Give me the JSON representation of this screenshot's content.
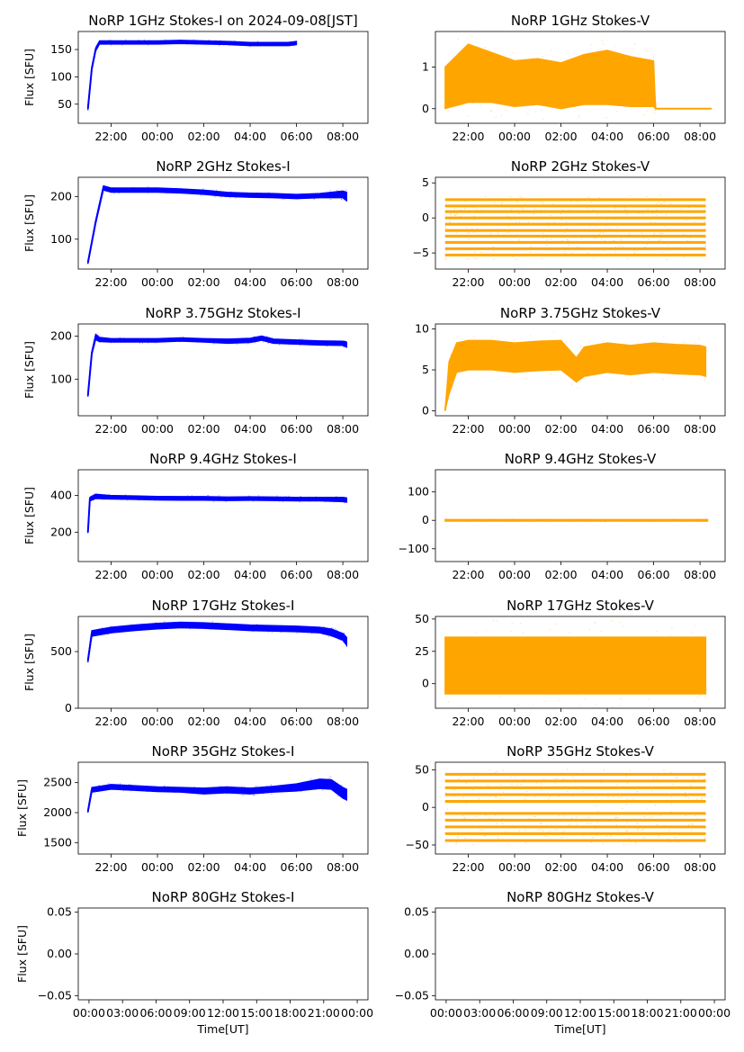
{
  "figure": {
    "title_top_left": "NoRP 1GHz Stokes-I on 2024-09-08[JST]",
    "xlabel": "Time[UT]",
    "ylabel": "Flux [SFU]"
  },
  "colors": {
    "stokes_i": "#0000ff",
    "stokes_v": "#ffa500"
  },
  "chart_data": [
    {
      "type": "scatter",
      "title": "NoRP 1GHz Stokes-I on 2024-09-08[JST]",
      "ylabel": "Flux [SFU]",
      "xlabel": "",
      "series_color": "blue",
      "xlim": [
        "20:35",
        "09:05"
      ],
      "ylim": [
        15,
        183
      ],
      "yticks": [
        50,
        100,
        150
      ],
      "xticks": [
        "22:00",
        "00:00",
        "02:00",
        "04:00",
        "06:00",
        "08:00"
      ],
      "x": [
        "21:00",
        "21:10",
        "21:20",
        "21:30",
        "22:00",
        "23:00",
        "00:00",
        "01:00",
        "02:00",
        "03:00",
        "04:00",
        "05:00",
        "05:40",
        "06:00"
      ],
      "y": [
        42,
        115,
        150,
        163,
        163,
        163,
        163,
        164,
        163,
        162,
        160,
        160,
        160,
        162
      ],
      "spread": [
        3,
        3,
        3,
        3,
        3,
        3,
        3,
        3,
        3,
        3,
        3,
        3,
        3,
        3
      ]
    },
    {
      "type": "scatter",
      "title": "NoRP 1GHz Stokes-V",
      "ylabel": "",
      "xlabel": "",
      "series_color": "orange",
      "xlim": [
        "20:35",
        "09:05"
      ],
      "ylim": [
        -0.35,
        1.85
      ],
      "yticks": [
        0,
        1
      ],
      "xticks": [
        "22:00",
        "00:00",
        "02:00",
        "04:00",
        "06:00",
        "08:00"
      ],
      "x": [
        "21:00",
        "22:00",
        "23:00",
        "00:00",
        "01:00",
        "02:00",
        "03:00",
        "04:00",
        "05:00",
        "06:00",
        "06:05",
        "07:00",
        "08:00",
        "08:30"
      ],
      "y": [
        0.5,
        0.85,
        0.75,
        0.6,
        0.65,
        0.55,
        0.7,
        0.75,
        0.65,
        0.6,
        0,
        0,
        0,
        0
      ],
      "spread": [
        0.5,
        0.7,
        0.6,
        0.55,
        0.55,
        0.55,
        0.6,
        0.65,
        0.6,
        0.55,
        0,
        0,
        0,
        0
      ]
    },
    {
      "type": "scatter",
      "title": "NoRP 2GHz Stokes-I",
      "ylabel": "Flux [SFU]",
      "xlabel": "",
      "series_color": "blue",
      "xlim": [
        "20:35",
        "09:05"
      ],
      "ylim": [
        30,
        245
      ],
      "yticks": [
        100,
        200
      ],
      "xticks": [
        "22:00",
        "00:00",
        "02:00",
        "04:00",
        "06:00",
        "08:00"
      ],
      "x": [
        "21:00",
        "21:20",
        "21:40",
        "22:00",
        "23:00",
        "00:00",
        "01:00",
        "02:00",
        "03:00",
        "04:00",
        "05:00",
        "06:00",
        "07:00",
        "08:00",
        "08:10"
      ],
      "y": [
        45,
        140,
        220,
        215,
        215,
        215,
        213,
        210,
        205,
        203,
        202,
        200,
        202,
        205,
        200
      ],
      "spread": [
        3,
        4,
        5,
        5,
        5,
        5,
        5,
        5,
        5,
        5,
        5,
        5,
        5,
        8,
        10
      ]
    },
    {
      "type": "scatter",
      "title": "NoRP 2GHz Stokes-V",
      "ylabel": "",
      "xlabel": "",
      "series_color": "orange",
      "xlim": [
        "20:35",
        "09:05"
      ],
      "ylim": [
        -7.3,
        5.8
      ],
      "yticks": [
        -5,
        0,
        5
      ],
      "xticks": [
        "22:00",
        "00:00",
        "02:00",
        "04:00",
        "06:00",
        "08:00"
      ],
      "levels": [
        -5.3,
        -4.4,
        -3.5,
        -2.6,
        -1.8,
        -0.9,
        0,
        0.9,
        1.7,
        2.6
      ],
      "x": [
        "21:00",
        "08:15"
      ]
    },
    {
      "type": "scatter",
      "title": "NoRP 3.75GHz Stokes-I",
      "ylabel": "Flux [SFU]",
      "xlabel": "",
      "series_color": "blue",
      "xlim": [
        "20:35",
        "09:05"
      ],
      "ylim": [
        15,
        228
      ],
      "yticks": [
        100,
        200
      ],
      "xticks": [
        "22:00",
        "00:00",
        "02:00",
        "04:00",
        "06:00",
        "08:00"
      ],
      "x": [
        "21:00",
        "21:10",
        "21:20",
        "21:30",
        "22:00",
        "23:00",
        "00:00",
        "01:00",
        "02:00",
        "03:00",
        "04:00",
        "04:30",
        "05:00",
        "06:00",
        "07:00",
        "08:00",
        "08:10"
      ],
      "y": [
        62,
        160,
        198,
        192,
        190,
        190,
        190,
        192,
        190,
        188,
        190,
        195,
        188,
        186,
        184,
        183,
        180
      ],
      "spread": [
        3,
        4,
        6,
        5,
        4,
        4,
        4,
        4,
        4,
        5,
        5,
        5,
        5,
        5,
        5,
        5,
        6
      ]
    },
    {
      "type": "scatter",
      "title": "NoRP 3.75GHz Stokes-V",
      "ylabel": "",
      "xlabel": "",
      "series_color": "orange",
      "xlim": [
        "20:35",
        "09:05"
      ],
      "ylim": [
        -0.6,
        10.6
      ],
      "yticks": [
        0,
        5,
        10
      ],
      "xticks": [
        "22:00",
        "00:00",
        "02:00",
        "04:00",
        "06:00",
        "08:00"
      ],
      "x": [
        "21:00",
        "21:10",
        "21:30",
        "22:00",
        "23:00",
        "00:00",
        "01:00",
        "02:00",
        "02:40",
        "03:00",
        "04:00",
        "05:00",
        "06:00",
        "07:00",
        "08:00",
        "08:15"
      ],
      "y": [
        0,
        4,
        6.5,
        6.8,
        6.8,
        6.5,
        6.7,
        6.8,
        5,
        6,
        6.5,
        6.2,
        6.5,
        6.3,
        6.2,
        6
      ],
      "spread": [
        0,
        2,
        1.8,
        1.8,
        1.8,
        1.8,
        1.8,
        1.8,
        1.5,
        1.8,
        1.8,
        1.8,
        1.8,
        1.8,
        1.8,
        1.8
      ]
    },
    {
      "type": "scatter",
      "title": "NoRP 9.4GHz Stokes-I",
      "ylabel": "Flux [SFU]",
      "xlabel": "",
      "series_color": "blue",
      "xlim": [
        "20:35",
        "09:05"
      ],
      "ylim": [
        40,
        540
      ],
      "yticks": [
        200,
        400
      ],
      "xticks": [
        "22:00",
        "00:00",
        "02:00",
        "04:00",
        "06:00",
        "08:00"
      ],
      "x": [
        "21:00",
        "21:05",
        "21:20",
        "22:00",
        "23:00",
        "00:00",
        "01:00",
        "02:00",
        "03:00",
        "04:00",
        "05:00",
        "06:00",
        "07:00",
        "08:00",
        "08:10"
      ],
      "y": [
        200,
        380,
        395,
        390,
        388,
        385,
        384,
        384,
        382,
        383,
        382,
        380,
        380,
        378,
        375
      ],
      "spread": [
        5,
        10,
        12,
        10,
        10,
        10,
        10,
        10,
        10,
        10,
        10,
        10,
        10,
        12,
        12
      ]
    },
    {
      "type": "scatter",
      "title": "NoRP 9.4GHz Stokes-V",
      "ylabel": "",
      "xlabel": "",
      "series_color": "orange",
      "xlim": [
        "20:35",
        "09:05"
      ],
      "ylim": [
        -145,
        178
      ],
      "yticks": [
        -100,
        0,
        100
      ],
      "xticks": [
        "22:00",
        "00:00",
        "02:00",
        "04:00",
        "06:00",
        "08:00"
      ],
      "x": [
        "21:00",
        "08:20"
      ],
      "y": [
        0,
        0
      ],
      "spread": [
        3,
        3
      ]
    },
    {
      "type": "scatter",
      "title": "NoRP 17GHz Stokes-I",
      "ylabel": "Flux [SFU]",
      "xlabel": "",
      "series_color": "blue",
      "xlim": [
        "20:35",
        "09:05"
      ],
      "ylim": [
        0,
        810
      ],
      "yticks": [
        0,
        500
      ],
      "xticks": [
        "22:00",
        "00:00",
        "02:00",
        "04:00",
        "06:00",
        "08:00"
      ],
      "x": [
        "21:00",
        "21:10",
        "22:00",
        "23:00",
        "00:00",
        "01:00",
        "02:00",
        "03:00",
        "04:00",
        "05:00",
        "06:00",
        "07:00",
        "07:30",
        "08:00",
        "08:10"
      ],
      "y": [
        420,
        660,
        690,
        710,
        725,
        735,
        730,
        720,
        710,
        705,
        700,
        690,
        670,
        630,
        590
      ],
      "spread": [
        15,
        25,
        25,
        25,
        25,
        25,
        25,
        25,
        25,
        25,
        25,
        25,
        30,
        30,
        35
      ]
    },
    {
      "type": "scatter",
      "title": "NoRP 17GHz Stokes-V",
      "ylabel": "",
      "xlabel": "",
      "series_color": "orange",
      "xlim": [
        "20:35",
        "09:05"
      ],
      "ylim": [
        -19,
        52
      ],
      "yticks": [
        0,
        25,
        50
      ],
      "xticks": [
        "22:00",
        "00:00",
        "02:00",
        "04:00",
        "06:00",
        "08:00"
      ],
      "x": [
        "21:00",
        "08:15"
      ],
      "y": [
        14,
        14
      ],
      "spread": [
        22,
        22
      ]
    },
    {
      "type": "scatter",
      "title": "NoRP 35GHz Stokes-I",
      "ylabel": "Flux [SFU]",
      "xlabel": "",
      "series_color": "blue",
      "xlim": [
        "20:35",
        "09:05"
      ],
      "ylim": [
        1310,
        2840
      ],
      "yticks": [
        1500,
        2000,
        2500
      ],
      "xticks": [
        "22:00",
        "00:00",
        "02:00",
        "04:00",
        "06:00",
        "08:00"
      ],
      "x": [
        "21:00",
        "21:10",
        "22:00",
        "23:00",
        "00:00",
        "01:00",
        "02:00",
        "03:00",
        "04:00",
        "05:00",
        "06:00",
        "06:30",
        "07:00",
        "07:30",
        "08:00",
        "08:10"
      ],
      "y": [
        2020,
        2380,
        2430,
        2410,
        2390,
        2380,
        2360,
        2380,
        2360,
        2390,
        2420,
        2450,
        2480,
        2470,
        2330,
        2300
      ],
      "spread": [
        20,
        40,
        40,
        40,
        40,
        40,
        50,
        50,
        50,
        50,
        60,
        70,
        80,
        80,
        90,
        90
      ]
    },
    {
      "type": "scatter",
      "title": "NoRP 35GHz Stokes-V",
      "ylabel": "",
      "xlabel": "",
      "series_color": "orange",
      "xlim": [
        "20:35",
        "09:05"
      ],
      "ylim": [
        -62,
        60
      ],
      "yticks": [
        -50,
        0,
        50
      ],
      "xticks": [
        "22:00",
        "00:00",
        "02:00",
        "04:00",
        "06:00",
        "08:00"
      ],
      "levels": [
        -44,
        -35,
        -26,
        -17,
        -8,
        8,
        17,
        26,
        35,
        44
      ],
      "x": [
        "21:00",
        "08:15"
      ]
    },
    {
      "type": "scatter",
      "title": "NoRP 80GHz Stokes-I",
      "ylabel": "Flux [SFU]",
      "xlabel": "Time[UT]",
      "series_color": "blue",
      "xlim": [
        -0.04,
        1.04
      ],
      "ylim": [
        -0.055,
        0.055
      ],
      "yticks": [
        -0.05,
        0.0,
        0.05
      ],
      "ytick_labels": [
        "−0.05",
        "0.00",
        "0.05"
      ],
      "xticks": [
        "00:00",
        "03:00",
        "06:00",
        "09:00",
        "12:00",
        "15:00",
        "18:00",
        "21:00",
        "00:00"
      ],
      "x": [],
      "y": []
    },
    {
      "type": "scatter",
      "title": "NoRP 80GHz Stokes-V",
      "ylabel": "",
      "xlabel": "Time[UT]",
      "series_color": "orange",
      "xlim": [
        -0.04,
        1.04
      ],
      "ylim": [
        -0.055,
        0.055
      ],
      "yticks": [
        -0.05,
        0.0,
        0.05
      ],
      "ytick_labels": [
        "−0.05",
        "0.00",
        "0.05"
      ],
      "xticks": [
        "00:00",
        "03:00",
        "06:00",
        "09:00",
        "12:00",
        "15:00",
        "18:00",
        "21:00",
        "00:00"
      ],
      "x": [],
      "y": []
    }
  ]
}
